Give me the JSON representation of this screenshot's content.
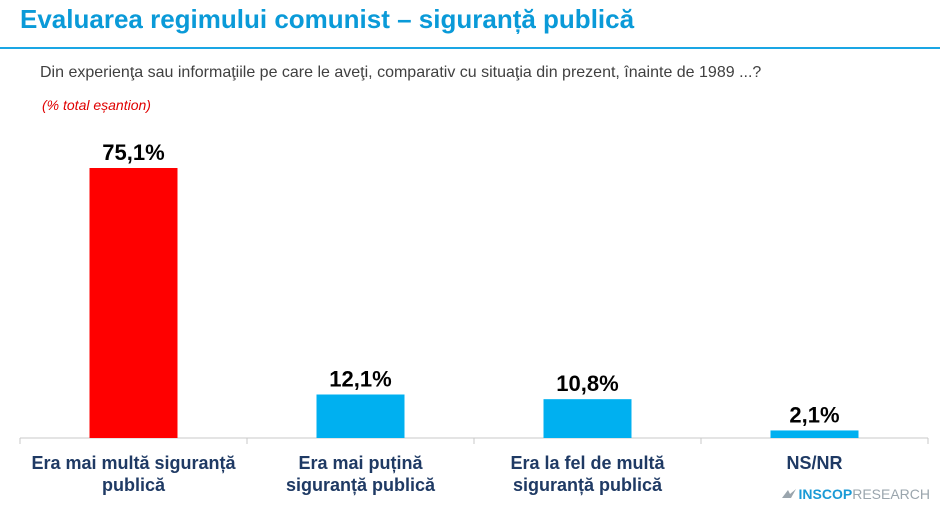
{
  "header": {
    "title": "Evaluarea regimului comunist – siguranță publică",
    "question": "Din experienţa sau informaţiile pe care le aveţi, comparativ cu situaţia din prezent, înainte de 1989 ...?",
    "note": "(% total eșantion)"
  },
  "logo": {
    "brand": "INSCOP",
    "suffix": "RESEARCH"
  },
  "colors": {
    "highlight": "#ff0000",
    "bar": "#00b0f0",
    "title": "#0a9ad8"
  },
  "chart_data": {
    "type": "bar",
    "categories": [
      [
        "Era mai multă siguranță",
        "publică"
      ],
      [
        "Era mai puțină",
        "siguranță publică"
      ],
      [
        "Era la fel de multă",
        "siguranță publică"
      ],
      [
        "NS/NR"
      ]
    ],
    "values": [
      75.1,
      12.1,
      10.8,
      2.1
    ],
    "value_labels": [
      "75,1%",
      "12,1%",
      "10,8%",
      "2,1%"
    ],
    "bar_colors": [
      "#ff0000",
      "#00b0f0",
      "#00b0f0",
      "#00b0f0"
    ],
    "title": "",
    "xlabel": "",
    "ylabel": "",
    "ylim": [
      0,
      75.1
    ],
    "grid": false,
    "legend": "none"
  }
}
